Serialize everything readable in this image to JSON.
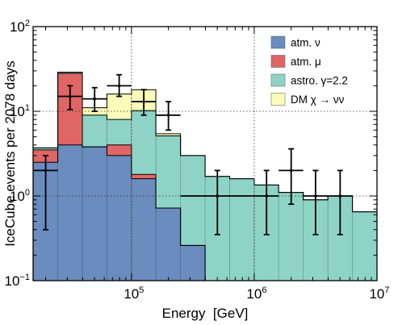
{
  "chart_data": {
    "type": "histogram-stacked",
    "xlabel": "Energy  [GeV]",
    "ylabel": "IceCube events per 2078 days",
    "x_scale": "log",
    "y_scale": "log",
    "xlim": [
      15800,
      10000000
    ],
    "ylim": [
      0.1,
      100
    ],
    "x_tick_labels": [
      {
        "value": 100000,
        "base": "10",
        "exp": "5"
      },
      {
        "value": 1000000,
        "base": "10",
        "exp": "6"
      },
      {
        "value": 10000000,
        "base": "10",
        "exp": "7"
      }
    ],
    "y_tick_labels": [
      {
        "value": 0.1,
        "base": "10",
        "exp": "−1"
      },
      {
        "value": 1,
        "base": "10",
        "exp": "0"
      },
      {
        "value": 10,
        "base": "10",
        "exp": "1"
      },
      {
        "value": 100,
        "base": "10",
        "exp": "2"
      }
    ],
    "grid": "dotted at decades",
    "legend_position": "top-right",
    "bin_edges": [
      15800,
      25100,
      39800,
      63100,
      100000,
      158000,
      251000,
      398000,
      631000,
      1000000,
      1580000,
      2510000,
      3980000,
      6310000,
      10000000
    ],
    "series": [
      {
        "name": "atm. ν",
        "color": "#6a8cbe",
        "values": [
          2.5,
          4.0,
          3.8,
          3.0,
          1.6,
          0.72,
          0.26,
          0.1,
          0.1,
          0.1,
          0.1,
          0.1,
          0.1,
          0.1
        ]
      },
      {
        "name": "atm. μ",
        "color": "#e06666",
        "values": [
          1.0,
          24.0,
          0.0,
          1.0,
          0.2,
          0.0,
          0.0,
          0.0,
          0.0,
          0.0,
          0.0,
          0.0,
          0.0,
          0.0
        ]
      },
      {
        "name": "astro. γ=2.2",
        "color": "#8ed4c6",
        "values": [
          0.2,
          1.0,
          5.2,
          4.0,
          8.4,
          4.4,
          2.74,
          1.6,
          1.5,
          1.25,
          1.0,
          0.8,
          0.9,
          0.55
        ]
      },
      {
        "name": "DM χ → νν",
        "color": "#fbfcb9",
        "values": [
          0.0,
          0.0,
          2.0,
          8.0,
          7.8,
          0.3,
          0.0,
          0.0,
          0.0,
          0.0,
          0.0,
          0.0,
          0.0,
          0.0
        ]
      }
    ],
    "totals": [
      3.7,
      29.0,
      11.0,
      16.0,
      18.0,
      5.4,
      3.0,
      1.7,
      1.6,
      1.35,
      1.1,
      0.9,
      1.0,
      0.65
    ],
    "data_points": [
      {
        "x": 20000,
        "y": 2.0,
        "xerr": [
          16000,
          25100
        ],
        "yerr": [
          0.4,
          3.0
        ]
      },
      {
        "x": 31600,
        "y": 15.0,
        "xerr": [
          25100,
          39800
        ],
        "yerr": [
          10.5,
          20.0
        ]
      },
      {
        "x": 50100,
        "y": 14.0,
        "xerr": [
          39800,
          63100
        ],
        "yerr": [
          10.0,
          19.0
        ]
      },
      {
        "x": 79400,
        "y": 20.0,
        "xerr": [
          63100,
          100000
        ],
        "yerr": [
          15.0,
          27.0
        ]
      },
      {
        "x": 126000,
        "y": 13.0,
        "xerr": [
          100000,
          158000
        ],
        "yerr": [
          9.0,
          18.0
        ]
      },
      {
        "x": 200000,
        "y": 9.0,
        "xerr": [
          158000,
          251000
        ],
        "yerr": [
          6.0,
          13.0
        ]
      },
      {
        "x": 501000,
        "y": 1.0,
        "xerr": [
          251000,
          1000000
        ],
        "yerr": [
          0.35,
          2.0
        ]
      },
      {
        "x": 1260000,
        "y": 1.0,
        "xerr": [
          1000000,
          1580000
        ],
        "yerr": [
          0.35,
          2.0
        ]
      },
      {
        "x": 2000000,
        "y": 2.0,
        "xerr": [
          1580000,
          2510000
        ],
        "yerr": [
          0.8,
          3.6
        ]
      },
      {
        "x": 3160000,
        "y": 1.0,
        "xerr": [
          2510000,
          3980000
        ],
        "yerr": [
          0.35,
          2.0
        ]
      },
      {
        "x": 5010000,
        "y": 1.0,
        "xerr": [
          3980000,
          6310000
        ],
        "yerr": [
          0.35,
          2.0
        ]
      }
    ]
  }
}
